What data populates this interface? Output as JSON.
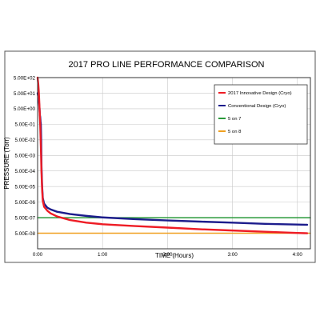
{
  "chart_data": {
    "type": "line",
    "title": "2017 PRO LINE PERFORMANCE COMPARISON",
    "xlabel": "TIME (Hours)",
    "ylabel": "PRESSURE (Torr)",
    "x_scale": "time",
    "x_unit": "hours",
    "xlim": [
      0,
      4.2
    ],
    "x_ticks": [
      {
        "value": 0,
        "label": "0:00"
      },
      {
        "value": 1,
        "label": "1:00"
      },
      {
        "value": 2,
        "label": "2:00"
      },
      {
        "value": 3,
        "label": "3:00"
      },
      {
        "value": 4,
        "label": "4:00"
      }
    ],
    "y_scale": "log",
    "ylim": [
      5e-09,
      500
    ],
    "y_ticks": [
      {
        "value": 500,
        "label": "5.00E+02"
      },
      {
        "value": 50,
        "label": "5.00E+01"
      },
      {
        "value": 5,
        "label": "5.00E+00"
      },
      {
        "value": 0.5,
        "label": "5.00E-01"
      },
      {
        "value": 0.05,
        "label": "5.00E-02"
      },
      {
        "value": 0.005,
        "label": "5.00E-03"
      },
      {
        "value": 0.0005,
        "label": "5.00E-04"
      },
      {
        "value": 5e-05,
        "label": "5.00E-05"
      },
      {
        "value": 5e-06,
        "label": "5.00E-06"
      },
      {
        "value": 5e-07,
        "label": "5.00E-07"
      },
      {
        "value": 5e-08,
        "label": "5.00E-08"
      },
      {
        "value": 5e-09,
        "label": ""
      }
    ],
    "grid": true,
    "legend_position": "top-right",
    "series": [
      {
        "name": "2017 Innovative Design (Cryo)",
        "color": "#ee1c25",
        "points": [
          [
            0,
            500
          ],
          [
            0.01,
            200
          ],
          [
            0.02,
            50
          ],
          [
            0.03,
            5
          ],
          [
            0.04,
            0.5
          ],
          [
            0.05,
            0.02
          ],
          [
            0.06,
            0.0004
          ],
          [
            0.07,
            3e-05
          ],
          [
            0.08,
            6e-06
          ],
          [
            0.1,
            2.5e-06
          ],
          [
            0.15,
            1.4e-06
          ],
          [
            0.2,
            9.5e-07
          ],
          [
            0.3,
            6e-07
          ],
          [
            0.5,
            3.5e-07
          ],
          [
            0.75,
            2.4e-07
          ],
          [
            1,
            1.9e-07
          ],
          [
            1.5,
            1.45e-07
          ],
          [
            2,
            1.15e-07
          ],
          [
            2.5,
            9e-08
          ],
          [
            3,
            7.5e-08
          ],
          [
            3.5,
            6.2e-08
          ],
          [
            4,
            5.2e-08
          ],
          [
            4.15,
            5e-08
          ]
        ]
      },
      {
        "name": "Conventional Design (Cryo)",
        "color": "#1c1c8c",
        "points": [
          [
            0,
            50
          ],
          [
            0.01,
            30
          ],
          [
            0.02,
            15
          ],
          [
            0.03,
            5
          ],
          [
            0.035,
            2
          ],
          [
            0.04,
            1.5
          ],
          [
            0.045,
            0.8
          ],
          [
            0.05,
            0.5
          ],
          [
            0.055,
            0.05
          ],
          [
            0.06,
            0.001
          ],
          [
            0.07,
            5e-05
          ],
          [
            0.08,
            9e-06
          ],
          [
            0.1,
            4e-06
          ],
          [
            0.15,
            2.2e-06
          ],
          [
            0.2,
            1.7e-06
          ],
          [
            0.3,
            1.2e-06
          ],
          [
            0.5,
            8.5e-07
          ],
          [
            0.75,
            6.5e-07
          ],
          [
            1,
            5.2e-07
          ],
          [
            1.5,
            4e-07
          ],
          [
            2,
            3.3e-07
          ],
          [
            2.5,
            2.8e-07
          ],
          [
            3,
            2.4e-07
          ],
          [
            3.5,
            2e-07
          ],
          [
            4,
            1.8e-07
          ],
          [
            4.15,
            1.75e-07
          ]
        ]
      },
      {
        "name": "5 on 7",
        "color": "#2a9a3a",
        "points": [
          [
            0,
            5e-07
          ],
          [
            4.2,
            5e-07
          ]
        ]
      },
      {
        "name": "5 on 8",
        "color": "#f0a020",
        "points": [
          [
            0,
            5e-08
          ],
          [
            4.2,
            5e-08
          ]
        ]
      }
    ]
  }
}
